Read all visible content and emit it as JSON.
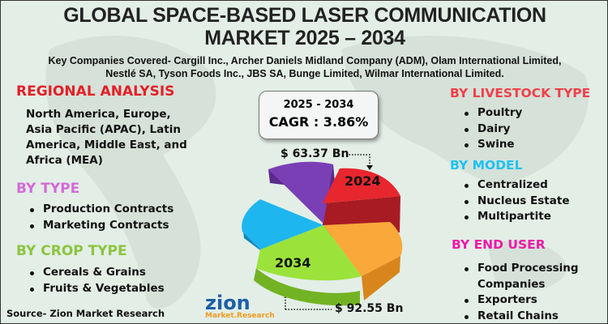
{
  "title_line1": "GLOBAL SPACE-BASED LASER COMMUNICATION",
  "title_line2": "MARKET 2025 – 2034",
  "companies_line1": "Key Companies Covered- Cargill Inc., Archer Daniels Midland Company (ADM), Olam International Limited,",
  "companies_line2": "Nestlé SA, Tyson Foods Inc., JBS SA, Bunge Limited, Wilmar International Limited.",
  "regional": {
    "heading": "REGIONAL ANALYSIS",
    "text": "North America, Europe, Asia Pacific (APAC), Latin America, Middle East, and Africa (MEA)",
    "color": "#e32027"
  },
  "by_type": {
    "heading": "BY TYPE",
    "items": [
      "Production Contracts",
      "Marketing Contracts"
    ],
    "color": "#d36ad8"
  },
  "by_crop": {
    "heading": "BY CROP TYPE",
    "items": [
      "Cereals & Grains",
      "Fruits & Vegetables"
    ],
    "color": "#8cc43f"
  },
  "by_livestock": {
    "heading": "BY LIVESTOCK TYPE",
    "items": [
      "Poultry",
      "Dairy",
      "Swine"
    ],
    "color": "#f1404a"
  },
  "by_model": {
    "heading": "BY MODEL",
    "items": [
      "Centralized",
      "Nucleus Estate",
      "Multipartite"
    ],
    "color": "#1ec3f0"
  },
  "by_end_user": {
    "heading": "BY END USER",
    "items": [
      "Food Processing Companies",
      "Exporters",
      "Retail Chains"
    ],
    "color": "#ec1aa8"
  },
  "cagr": {
    "period": "2025 - 2034",
    "label": "CAGR : 3.86%"
  },
  "market": {
    "value_2024": "$ 63.37 Bn",
    "year_2024": "2024",
    "value_2034": "$ 92.55 Bn",
    "year_2034": "2034"
  },
  "pie_colors": {
    "red": "#e8262e",
    "orange": "#f8a93a",
    "green": "#9be33a",
    "blue": "#1eb6ef",
    "purple": "#7b3fb5"
  },
  "logo": {
    "name": "zion",
    "sub": "Market.Research"
  },
  "source": "Source- Zion Market Research"
}
